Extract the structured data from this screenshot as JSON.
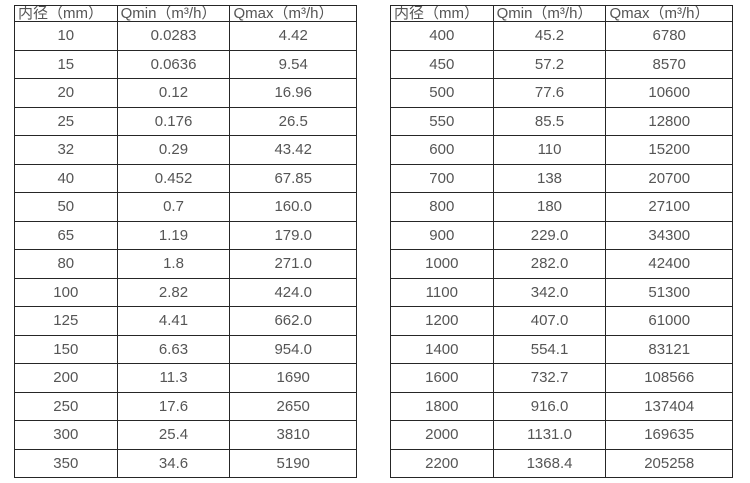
{
  "page": {
    "background_color": "#ffffff",
    "text_color": "#555555",
    "border_color": "#262626"
  },
  "tables": [
    {
      "name": "flow-spec-table-small-diameters",
      "headers": [
        "内径（mm）",
        "Qmin（m³/h）",
        "Qmax（m³/h）"
      ],
      "rows": [
        [
          "10",
          "0.0283",
          "4.42"
        ],
        [
          "15",
          "0.0636",
          "9.54"
        ],
        [
          "20",
          "0.12",
          "16.96"
        ],
        [
          "25",
          "0.176",
          "26.5"
        ],
        [
          "32",
          "0.29",
          "43.42"
        ],
        [
          "40",
          "0.452",
          "67.85"
        ],
        [
          "50",
          "0.7",
          "160.0"
        ],
        [
          "65",
          "1.19",
          "179.0"
        ],
        [
          "80",
          "1.8",
          "271.0"
        ],
        [
          "100",
          "2.82",
          "424.0"
        ],
        [
          "125",
          "4.41",
          "662.0"
        ],
        [
          "150",
          "6.63",
          "954.0"
        ],
        [
          "200",
          "11.3",
          "1690"
        ],
        [
          "250",
          "17.6",
          "2650"
        ],
        [
          "300",
          "25.4",
          "3810"
        ],
        [
          "350",
          "34.6",
          "5190"
        ]
      ]
    },
    {
      "name": "flow-spec-table-large-diameters",
      "headers": [
        "内径（mm）",
        "Qmin（m³/h）",
        "Qmax（m³/h）"
      ],
      "rows": [
        [
          "400",
          "45.2",
          "6780"
        ],
        [
          "450",
          "57.2",
          "8570"
        ],
        [
          "500",
          "77.6",
          "10600"
        ],
        [
          "550",
          "85.5",
          "12800"
        ],
        [
          "600",
          "110",
          "15200"
        ],
        [
          "700",
          "138",
          "20700"
        ],
        [
          "800",
          "180",
          "27100"
        ],
        [
          "900",
          "229.0",
          "34300"
        ],
        [
          "1000",
          "282.0",
          "42400"
        ],
        [
          "1100",
          "342.0",
          "51300"
        ],
        [
          "1200",
          "407.0",
          "61000"
        ],
        [
          "1400",
          "554.1",
          "83121"
        ],
        [
          "1600",
          "732.7",
          "108566"
        ],
        [
          "1800",
          "916.0",
          "137404"
        ],
        [
          "2000",
          "1131.0",
          "169635"
        ],
        [
          "2200",
          "1368.4",
          "205258"
        ]
      ]
    }
  ],
  "cell_names": [
    "diameter-cell",
    "qmin-cell",
    "qmax-cell"
  ],
  "header_names": [
    "diameter-header",
    "qmin-header",
    "qmax-header"
  ]
}
